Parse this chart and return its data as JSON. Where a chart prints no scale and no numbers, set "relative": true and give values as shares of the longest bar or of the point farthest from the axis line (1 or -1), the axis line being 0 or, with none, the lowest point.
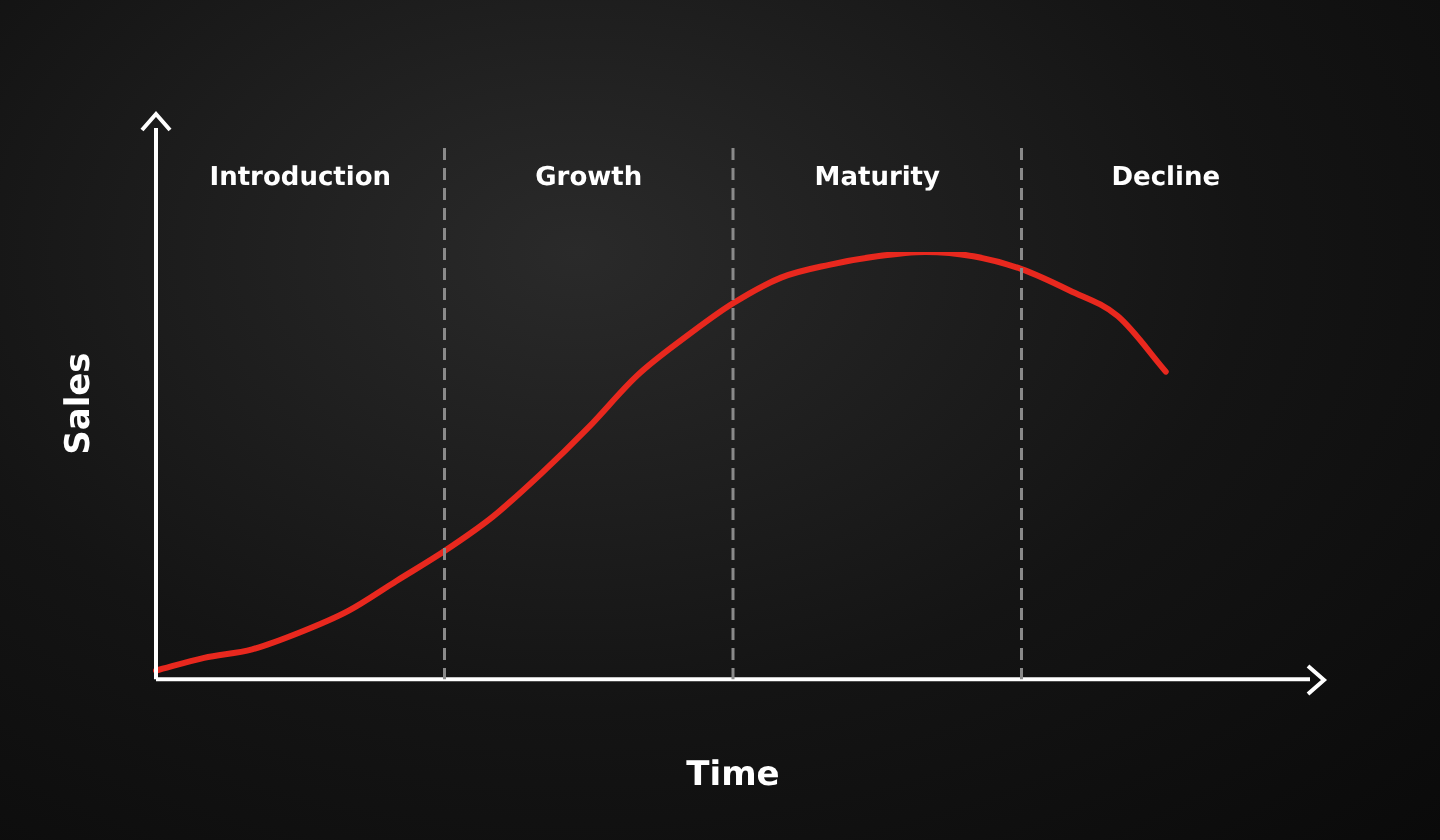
{
  "chart_data": {
    "type": "line",
    "relative": true,
    "xlabel": "Time",
    "ylabel": "Sales",
    "categories": [
      null,
      null,
      null,
      null,
      null,
      null,
      null,
      null,
      null,
      null,
      null,
      null,
      null,
      null,
      null,
      null,
      null,
      null,
      null,
      null,
      null,
      null,
      null,
      null,
      null
    ],
    "series": [
      {
        "color": "#e8281e",
        "values": [
          0.02,
          0.05,
          0.07,
          0.11,
          0.16,
          0.23,
          0.3,
          0.38,
          0.48,
          0.59,
          0.71,
          0.8,
          0.88,
          0.94,
          0.97,
          0.99,
          1,
          0.99,
          0.96,
          0.91,
          0.85,
          0.72,
          null,
          null,
          null
        ]
      }
    ],
    "annotations": [
      "Introduction",
      "Growth",
      "Maturity",
      "Decline"
    ],
    "grid": "x",
    "legend": false,
    "marker": "none",
    "line_style": "solid"
  }
}
